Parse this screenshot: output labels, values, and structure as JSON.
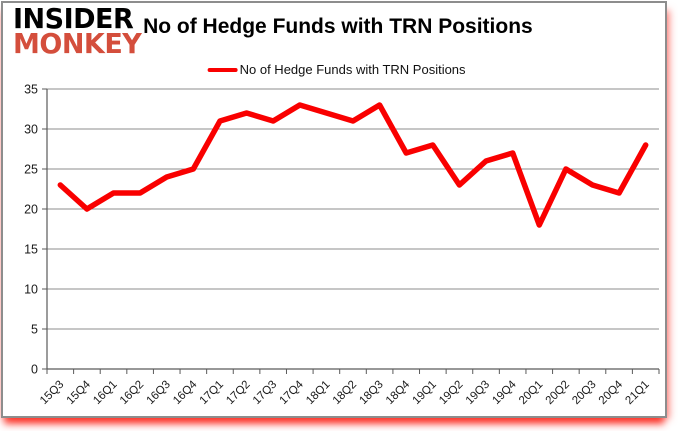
{
  "brand": {
    "line1": "INSIDER",
    "line2": "MONKEY"
  },
  "header": {
    "title": "No of Hedge Funds with TRN Positions"
  },
  "legend": {
    "label": "No of Hedge Funds with TRN Positions"
  },
  "colors": {
    "line": "#f90000",
    "brand_red": "#d44e3c",
    "grid": "#8c8c8c",
    "axis": "#5a5a5a",
    "tick_text": "#1a1a1a",
    "shadow_red": "#fc2519"
  },
  "chart_data": {
    "type": "line",
    "title": "No of Hedge Funds with TRN Positions",
    "series_name": "No of Hedge Funds with TRN Positions",
    "categories": [
      "15Q3",
      "15Q4",
      "16Q1",
      "16Q2",
      "16Q3",
      "16Q4",
      "17Q1",
      "17Q2",
      "17Q3",
      "17Q4",
      "18Q1",
      "18Q2",
      "18Q3",
      "18Q4",
      "19Q1",
      "19Q2",
      "19Q3",
      "19Q4",
      "20Q1",
      "20Q2",
      "20Q3",
      "20Q4",
      "21Q1"
    ],
    "values": [
      23,
      20,
      22,
      22,
      24,
      25,
      31,
      32,
      31,
      33,
      32,
      31,
      33,
      27,
      28,
      23,
      26,
      27,
      18,
      25,
      23,
      22,
      28
    ],
    "xlabel": "",
    "ylabel": "",
    "ylim": [
      0,
      35
    ],
    "yticks": [
      0,
      5,
      10,
      15,
      20,
      25,
      30,
      35
    ],
    "grid": true,
    "legend_position": "top-center",
    "line_width": 5.5
  }
}
